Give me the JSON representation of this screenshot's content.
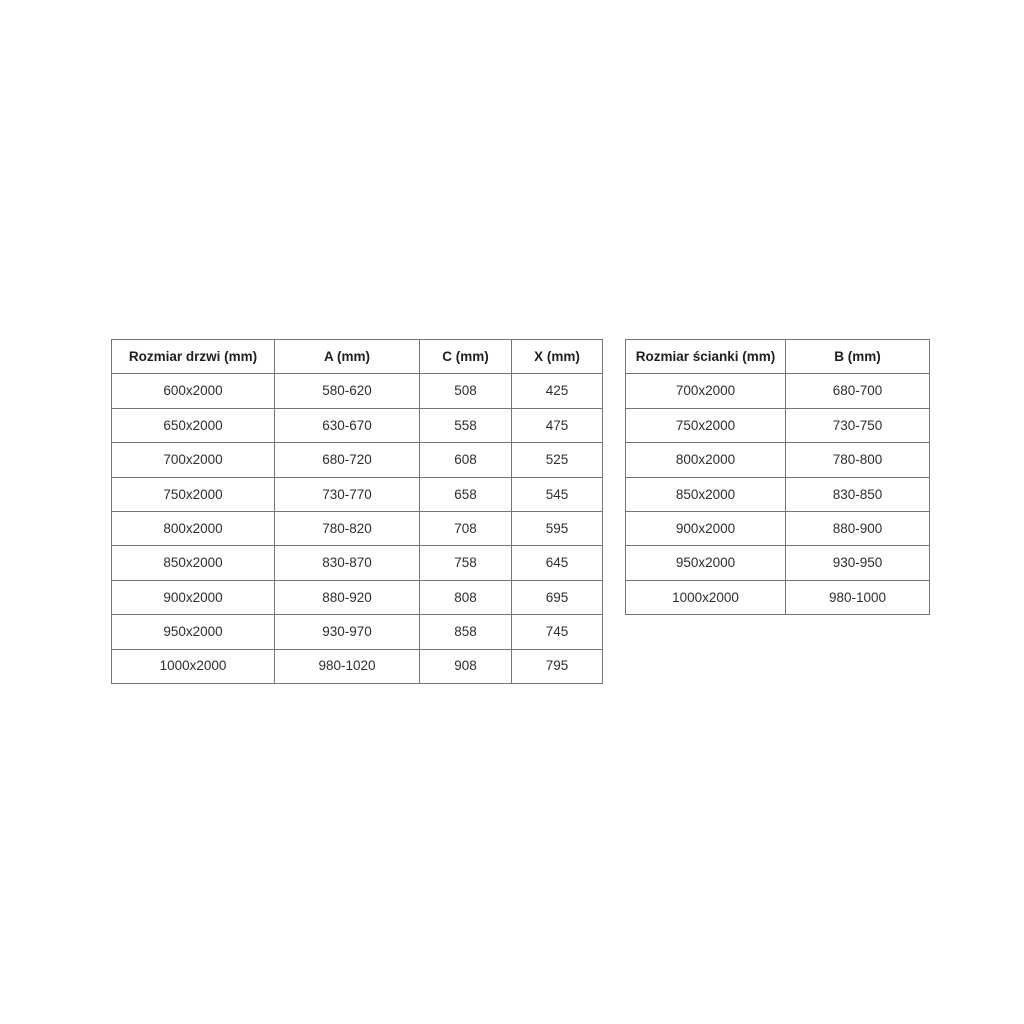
{
  "colors": {
    "background": "#ffffff",
    "table_border": "#757575",
    "header_text": "#1f1f1f",
    "cell_text": "#2e2e2e"
  },
  "tables": {
    "doors": {
      "headers": [
        "Rozmiar drzwi (mm)",
        "A (mm)",
        "C (mm)",
        "X (mm)"
      ],
      "rows": [
        [
          "600x2000",
          "580-620",
          "508",
          "425"
        ],
        [
          "650x2000",
          "630-670",
          "558",
          "475"
        ],
        [
          "700x2000",
          "680-720",
          "608",
          "525"
        ],
        [
          "750x2000",
          "730-770",
          "658",
          "545"
        ],
        [
          "800x2000",
          "780-820",
          "708",
          "595"
        ],
        [
          "850x2000",
          "830-870",
          "758",
          "645"
        ],
        [
          "900x2000",
          "880-920",
          "808",
          "695"
        ],
        [
          "950x2000",
          "930-970",
          "858",
          "745"
        ],
        [
          "1000x2000",
          "980-1020",
          "908",
          "795"
        ]
      ]
    },
    "walls": {
      "headers": [
        "Rozmiar ścianki (mm)",
        "B (mm)"
      ],
      "rows": [
        [
          "700x2000",
          "680-700"
        ],
        [
          "750x2000",
          "730-750"
        ],
        [
          "800x2000",
          "780-800"
        ],
        [
          "850x2000",
          "830-850"
        ],
        [
          "900x2000",
          "880-900"
        ],
        [
          "950x2000",
          "930-950"
        ],
        [
          "1000x2000",
          "980-1000"
        ]
      ]
    }
  }
}
